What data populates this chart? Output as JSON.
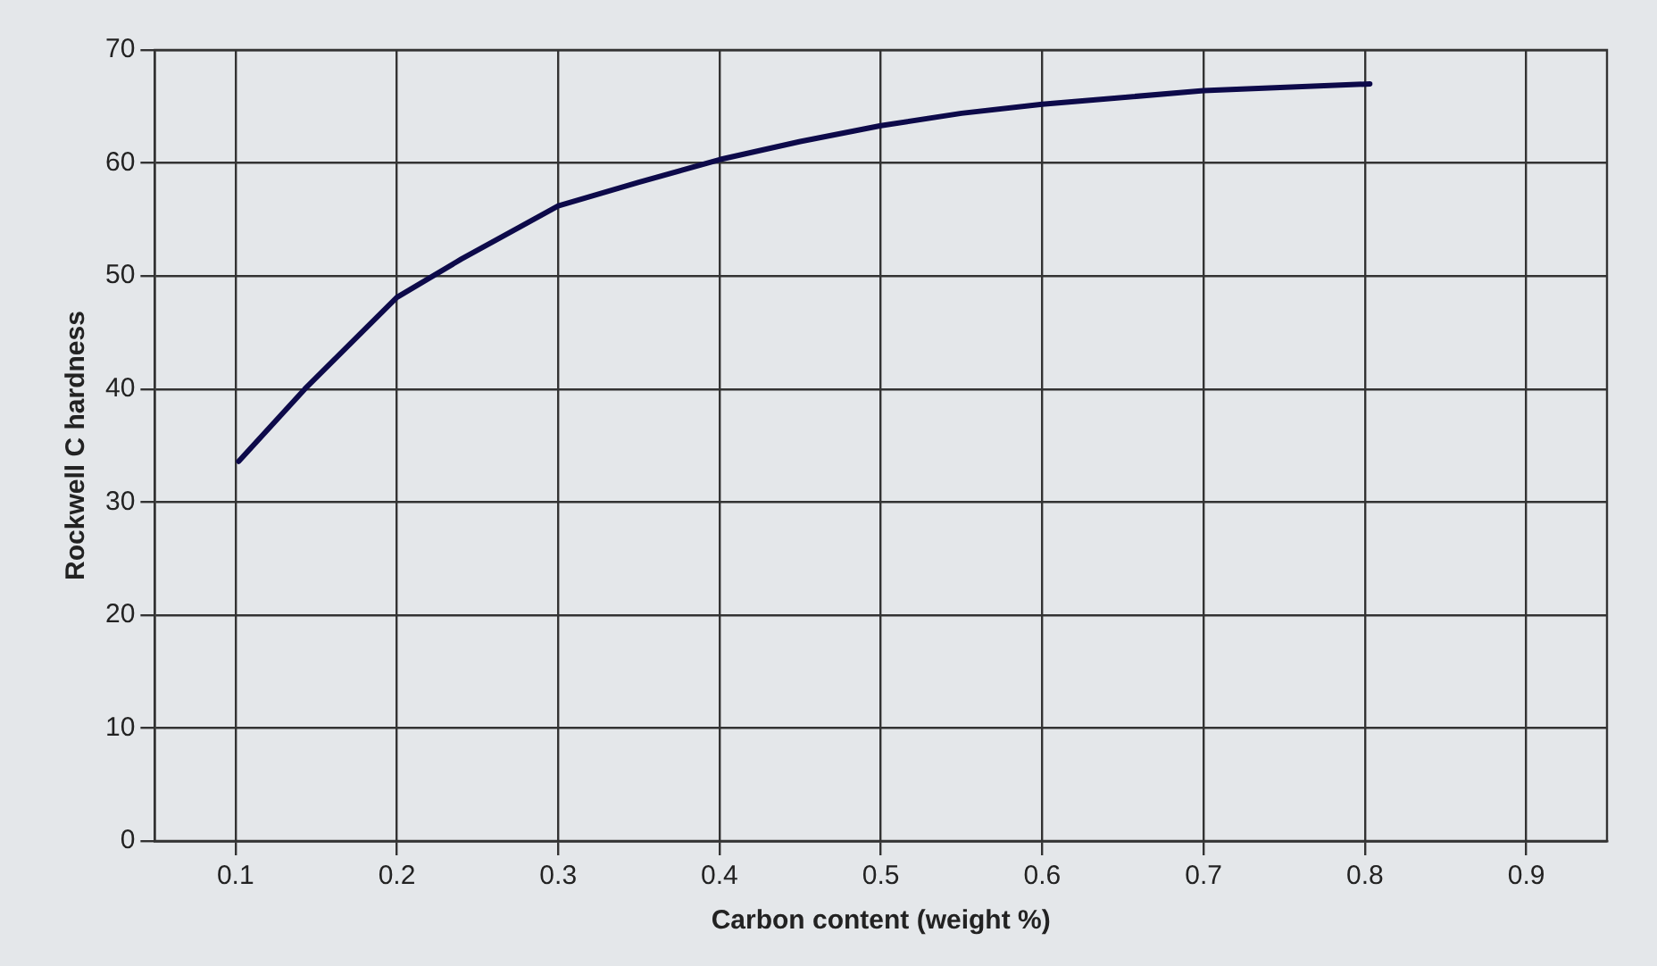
{
  "chart_data": {
    "type": "line",
    "xlabel": "Carbon content (weight %)",
    "ylabel": "Rockwell C hardness",
    "x": [
      0.102,
      0.143,
      0.2,
      0.24,
      0.3,
      0.35,
      0.4,
      0.45,
      0.5,
      0.55,
      0.6,
      0.7,
      0.803
    ],
    "series": [
      {
        "color": "#0d0a4a",
        "values": [
          33.6,
          40.0,
          48.1,
          51.5,
          56.2,
          58.3,
          60.3,
          61.9,
          63.3,
          64.4,
          65.2,
          66.4,
          67.0
        ]
      }
    ],
    "xlim": [
      0.05,
      0.95
    ],
    "xticks": [
      0.1,
      0.2,
      0.3,
      0.4,
      0.5,
      0.6,
      0.7,
      0.8,
      0.9
    ],
    "ylim": [
      0,
      70
    ],
    "yticks": [
      0,
      10,
      20,
      30,
      40,
      50,
      60,
      70
    ],
    "grid": true,
    "legend": false,
    "marker": "none",
    "line_style": "solid"
  }
}
